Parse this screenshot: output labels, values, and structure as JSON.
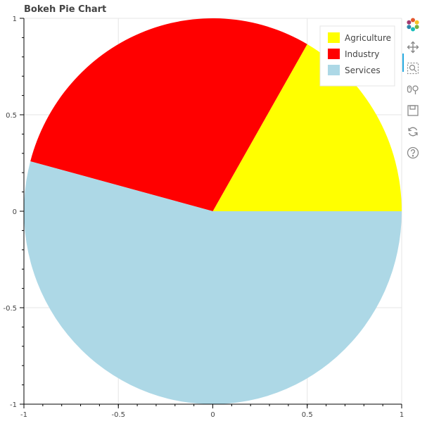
{
  "chart_data": {
    "type": "pie",
    "title": "Bokeh Pie Chart",
    "slices": [
      {
        "label": "Agriculture",
        "start_angle_deg": 0,
        "end_angle_deg": 60,
        "color": "#ffff00"
      },
      {
        "label": "Industry",
        "start_angle_deg": 60,
        "end_angle_deg": 165,
        "color": "#ff0000"
      },
      {
        "label": "Services",
        "start_angle_deg": 165,
        "end_angle_deg": 360,
        "color": "#add8e6"
      }
    ],
    "xlim": [
      -1,
      1
    ],
    "ylim": [
      -1,
      1
    ],
    "x_ticks": [
      "-1",
      "-0.5",
      "0",
      "0.5",
      "1"
    ],
    "y_ticks": [
      "-1",
      "-0.5",
      "0",
      "0.5",
      "1"
    ],
    "grid": true,
    "legend_position": "top-right"
  },
  "toolbar": {
    "tools": [
      "bokeh-logo-icon",
      "pan-icon",
      "box-zoom-icon",
      "wheel-zoom-icon",
      "save-icon",
      "reset-icon",
      "help-icon"
    ],
    "active": "pan-icon"
  }
}
